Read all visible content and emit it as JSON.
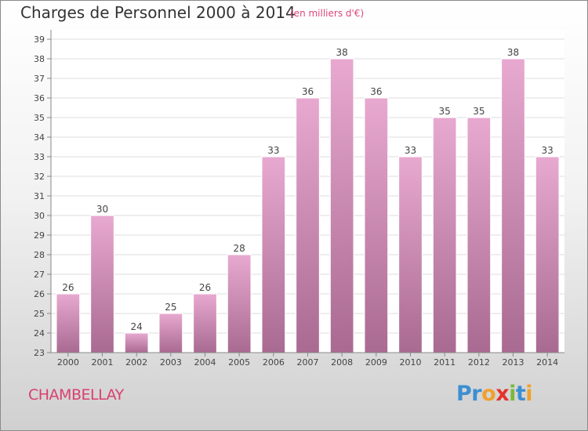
{
  "title": "Charges de Personnel 2000 à 2014",
  "subtitle": "(en milliers d'€)",
  "commune": "CHAMBELLAY",
  "logo": {
    "letters": [
      "P",
      "r",
      "o",
      "x",
      "i",
      "t",
      "i"
    ],
    "colors": [
      "#3c8fd1",
      "#3c8fd1",
      "#f0a030",
      "#e5322d",
      "#7ab83c",
      "#3c8fd1",
      "#f0a030"
    ]
  },
  "colors": {
    "bar_top": "#e8a9d0",
    "bar_bottom": "#a96a92",
    "title": "#333333",
    "subtitle": "#e0457a",
    "commune": "#d94070"
  },
  "chart_data": {
    "type": "bar",
    "categories": [
      "2000",
      "2001",
      "2002",
      "2003",
      "2004",
      "2005",
      "2006",
      "2007",
      "2008",
      "2009",
      "2010",
      "2011",
      "2012",
      "2013",
      "2014"
    ],
    "values": [
      26,
      30,
      24,
      25,
      26,
      28,
      33,
      36,
      38,
      36,
      33,
      35,
      35,
      38,
      33
    ],
    "data_labels": [
      "26",
      "30",
      "24",
      "25",
      "26",
      "28",
      "33",
      "36",
      "38",
      "36",
      "33",
      "35",
      "35",
      "38",
      "33"
    ],
    "yticks": [
      "23",
      "24",
      "25",
      "26",
      "27",
      "28",
      "29",
      "30",
      "31",
      "32",
      "33",
      "34",
      "35",
      "36",
      "37",
      "38",
      "39"
    ],
    "ylim": [
      23,
      39
    ],
    "grid": true
  }
}
